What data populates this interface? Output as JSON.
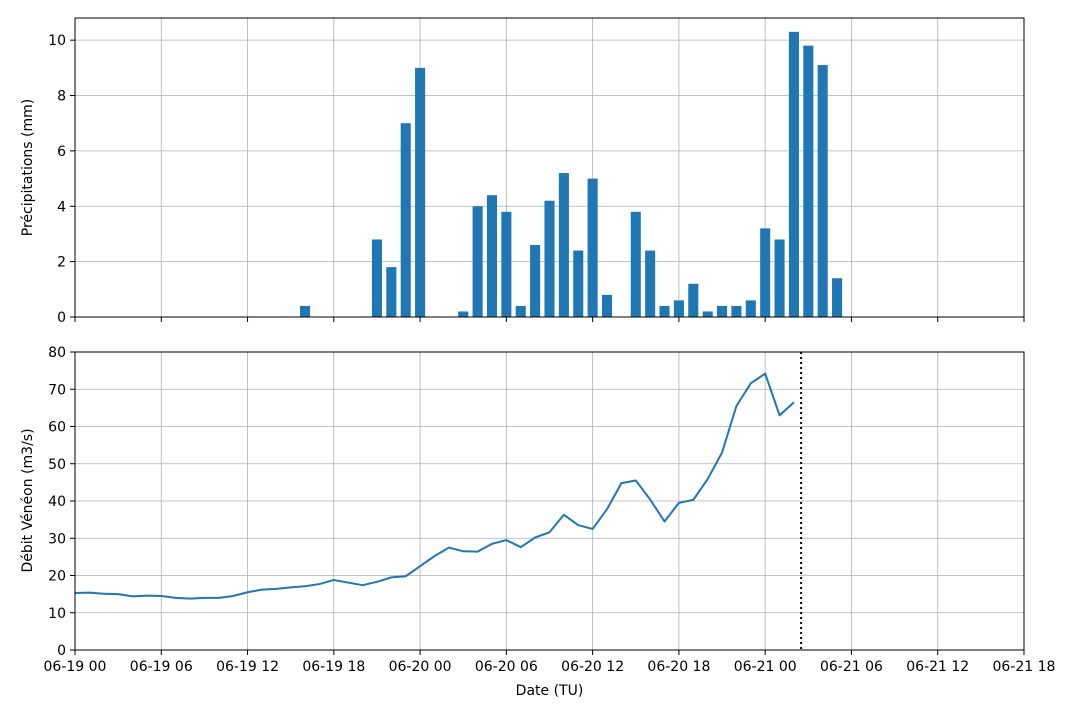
{
  "chart_data": [
    {
      "type": "bar",
      "ylabel": "Précipitations (mm)",
      "ylim": [
        0,
        10.8
      ],
      "yticks": [
        0,
        2,
        4,
        6,
        8,
        10
      ],
      "xlim_hours": [
        0,
        66
      ],
      "x_shared": true,
      "grid": true,
      "color": "#1f77b4",
      "x_hours": [
        16,
        21,
        22,
        23,
        24,
        27,
        28,
        29,
        30,
        31,
        32,
        33,
        34,
        35,
        36,
        37,
        39,
        40,
        41,
        42,
        43,
        44,
        45,
        46,
        47,
        48,
        49,
        50,
        51,
        52,
        53,
        54
      ],
      "x_times": [
        "06-19 16:00",
        "06-19 21:00",
        "06-19 22:00",
        "06-19 23:00",
        "06-20 00:00",
        "06-20 03:00",
        "06-20 04:00",
        "06-20 05:00",
        "06-20 06:00",
        "06-20 07:00",
        "06-20 08:00",
        "06-20 09:00",
        "06-20 10:00",
        "06-20 11:00",
        "06-20 12:00",
        "06-20 13:00",
        "06-20 15:00",
        "06-20 16:00",
        "06-20 17:00",
        "06-20 18:00",
        "06-20 19:00",
        "06-20 20:00",
        "06-20 21:00",
        "06-20 22:00",
        "06-20 23:00",
        "06-21 00:00",
        "06-21 01:00",
        "06-21 02:00",
        "06-21 03:00",
        "06-21 04:00",
        "06-21 05:00",
        "06-21 06:00"
      ],
      "values": [
        0.4,
        2.8,
        1.8,
        7.0,
        9.0,
        0.2,
        4.0,
        4.4,
        3.8,
        0.4,
        2.6,
        4.2,
        5.2,
        2.4,
        5.0,
        0.8,
        3.8,
        2.4,
        0.4,
        0.6,
        1.2,
        0.2,
        0.4,
        0.4,
        0.6,
        3.2,
        2.8,
        10.3,
        9.8,
        9.1,
        1.4,
        0
      ]
    },
    {
      "type": "line",
      "ylabel": "Débit Vénéon (m3/s)",
      "xlabel": "Date (TU)",
      "ylim": [
        0,
        80
      ],
      "yticks": [
        0,
        10,
        20,
        30,
        40,
        50,
        60,
        70,
        80
      ],
      "xlim_hours": [
        0,
        66
      ],
      "grid": true,
      "color": "#1f77b4",
      "x_times": [
        "06-19 00:00",
        "06-19 01:00",
        "06-19 02:00",
        "06-19 03:00",
        "06-19 04:00",
        "06-19 05:00",
        "06-19 06:00",
        "06-19 07:00",
        "06-19 08:00",
        "06-19 09:00",
        "06-19 10:00",
        "06-19 11:00",
        "06-19 12:00",
        "06-19 13:00",
        "06-19 14:00",
        "06-19 15:00",
        "06-19 16:00",
        "06-19 17:00",
        "06-19 18:00",
        "06-19 20:00",
        "06-19 21:00",
        "06-19 22:00",
        "06-19 23:00",
        "06-20 00:00",
        "06-20 01:00",
        "06-20 02:00",
        "06-20 03:00",
        "06-20 04:00",
        "06-20 05:00",
        "06-20 06:00",
        "06-20 07:00",
        "06-20 08:00",
        "06-20 09:00",
        "06-20 10:00",
        "06-20 11:00",
        "06-20 12:00",
        "06-20 13:00",
        "06-20 14:00",
        "06-20 15:00",
        "06-20 16:00",
        "06-20 17:00",
        "06-20 18:00",
        "06-20 19:00",
        "06-20 20:00",
        "06-20 21:00",
        "06-20 22:00",
        "06-20 23:00",
        "06-21 00:00",
        "06-21 01:00",
        "06-21 02:00"
      ],
      "x_hours": [
        0,
        1,
        2,
        3,
        4,
        5,
        6,
        7,
        8,
        9,
        10,
        11,
        12,
        13,
        14,
        15,
        16,
        17,
        18,
        20,
        21,
        22,
        23,
        24,
        25,
        26,
        27,
        28,
        29,
        30,
        31,
        32,
        33,
        34,
        35,
        36,
        37,
        38,
        39,
        40,
        41,
        42,
        43,
        44,
        45,
        46,
        47,
        48,
        49,
        50
      ],
      "values": [
        15.3,
        15.4,
        15.1,
        15.0,
        14.4,
        14.6,
        14.5,
        14.0,
        13.8,
        14.0,
        14.0,
        14.5,
        15.5,
        16.2,
        16.4,
        16.8,
        17.1,
        17.7,
        18.8,
        17.4,
        18.3,
        19.5,
        19.8,
        22.5,
        25.2,
        27.5,
        26.5,
        26.4,
        28.5,
        29.5,
        27.6,
        30.2,
        31.6,
        36.3,
        33.5,
        32.5,
        37.8,
        44.8,
        45.5,
        40.4,
        34.5,
        39.5,
        40.3,
        45.9,
        53.0,
        65.5,
        71.6,
        74.2,
        63.0,
        66.5
      ],
      "vline_hour": 50.5,
      "vline_time": "06-21 02:30",
      "vline_style": "dotted",
      "vline_color": "#000000"
    }
  ],
  "x_tick_labels": [
    "06-19 00",
    "06-19 06",
    "06-19 12",
    "06-19 18",
    "06-20 00",
    "06-20 06",
    "06-20 12",
    "06-20 18",
    "06-21 00",
    "06-21 06",
    "06-21 12",
    "06-21 18"
  ],
  "x_tick_hours": [
    0,
    6,
    12,
    18,
    24,
    30,
    36,
    42,
    48,
    54,
    60,
    66
  ]
}
